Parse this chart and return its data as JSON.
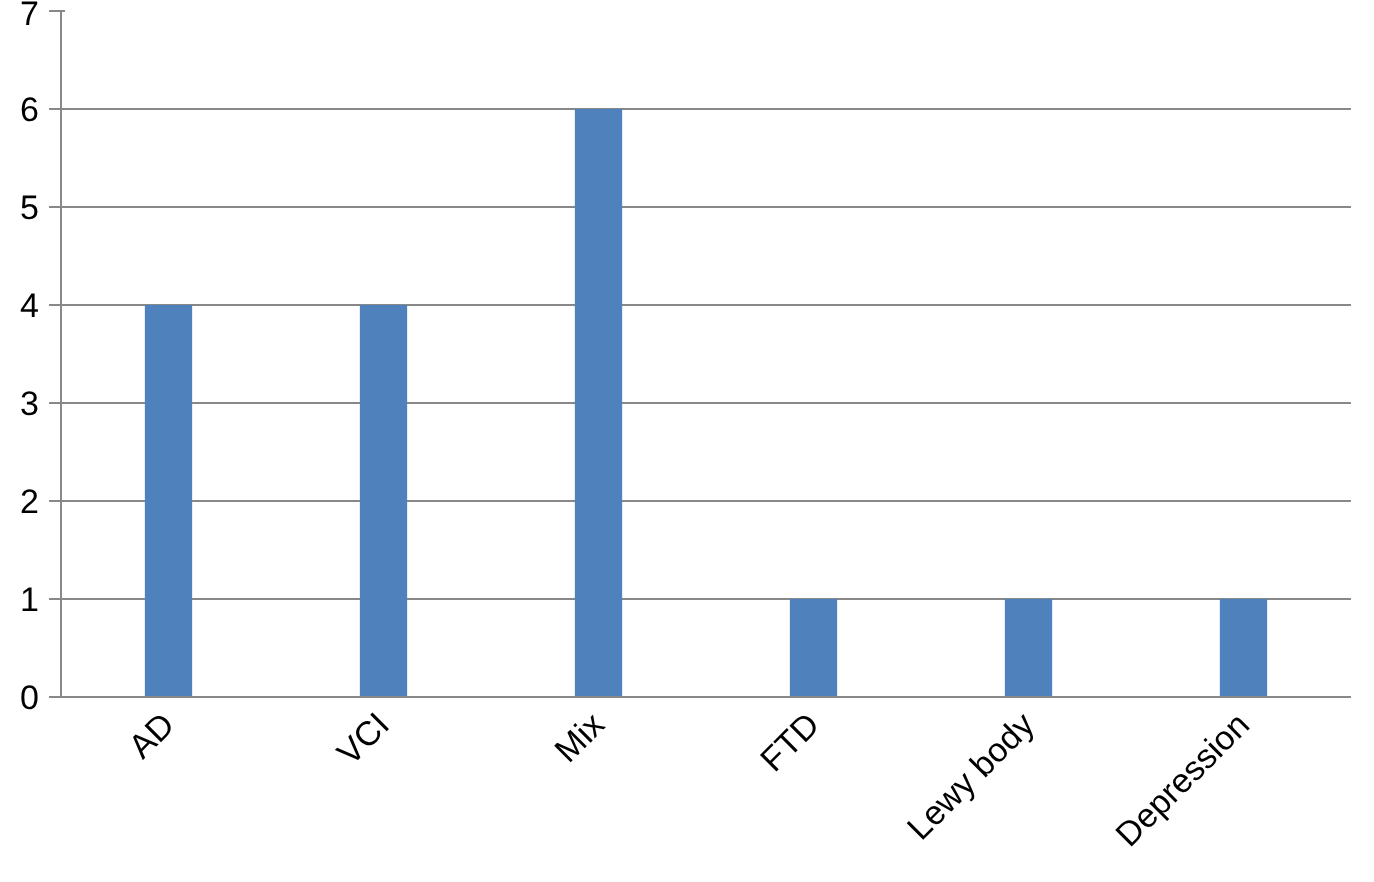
{
  "chart_data": {
    "type": "bar",
    "categories": [
      "AD",
      "VCI",
      "Mix",
      "FTD",
      "Lewy body",
      "Depression"
    ],
    "values": [
      4,
      4,
      6,
      1,
      1,
      1
    ],
    "color": "#4f81bd",
    "ylim": [
      0,
      7
    ],
    "yticks": [
      0,
      1,
      2,
      3,
      4,
      5,
      6,
      7
    ],
    "grid": "y"
  }
}
